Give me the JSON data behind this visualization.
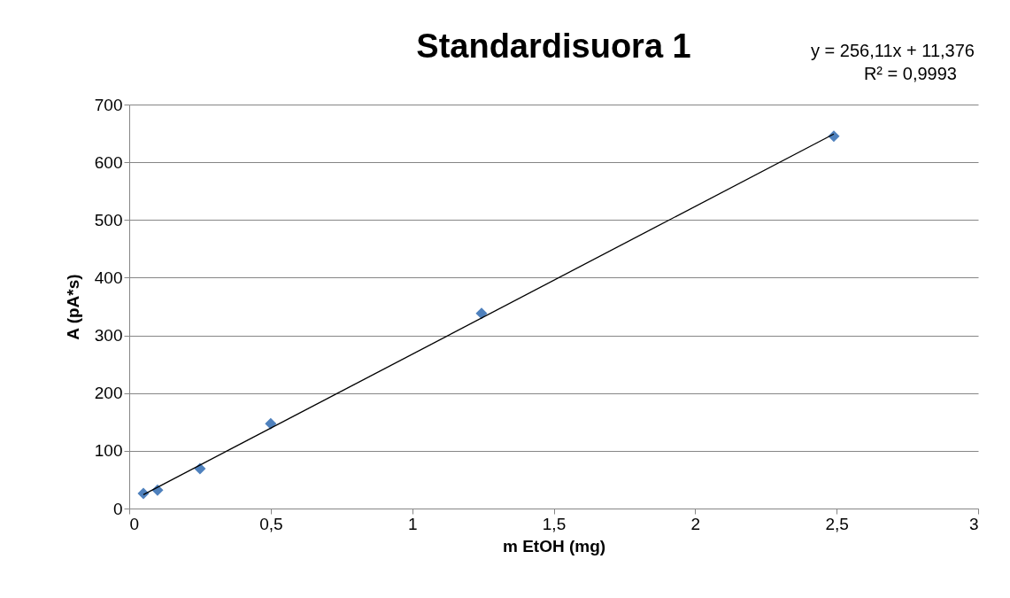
{
  "chart_data": {
    "type": "scatter",
    "title": "Standardisuora 1",
    "xlabel": "m EtOH (mg)",
    "ylabel": "A (pA*s)",
    "annotations": [
      "y = 256,11x + 11,376",
      "R² = 0,9993"
    ],
    "series": [
      {
        "color": "#4f81bd",
        "x": [
          0.05,
          0.1,
          0.25,
          0.5,
          1.245,
          2.49
        ],
        "values": [
          26,
          32,
          69,
          147,
          338,
          645
        ]
      },
      {
        "type": "line",
        "marker": "none",
        "color": "#000000",
        "x": [
          0.05,
          2.49
        ],
        "values": [
          24,
          649
        ]
      }
    ],
    "xlim": [
      0,
      3
    ],
    "xticks": [
      0,
      {
        "value": 0.5,
        "label": "0,5"
      },
      1,
      {
        "value": 1.5,
        "label": "1,5"
      },
      2,
      {
        "value": 2.5,
        "label": "2,5"
      },
      3
    ],
    "ylim": [
      0,
      700
    ],
    "yticks": [
      0,
      100,
      200,
      300,
      400,
      500,
      600,
      700
    ],
    "grid": "y",
    "marker": "diamond"
  }
}
